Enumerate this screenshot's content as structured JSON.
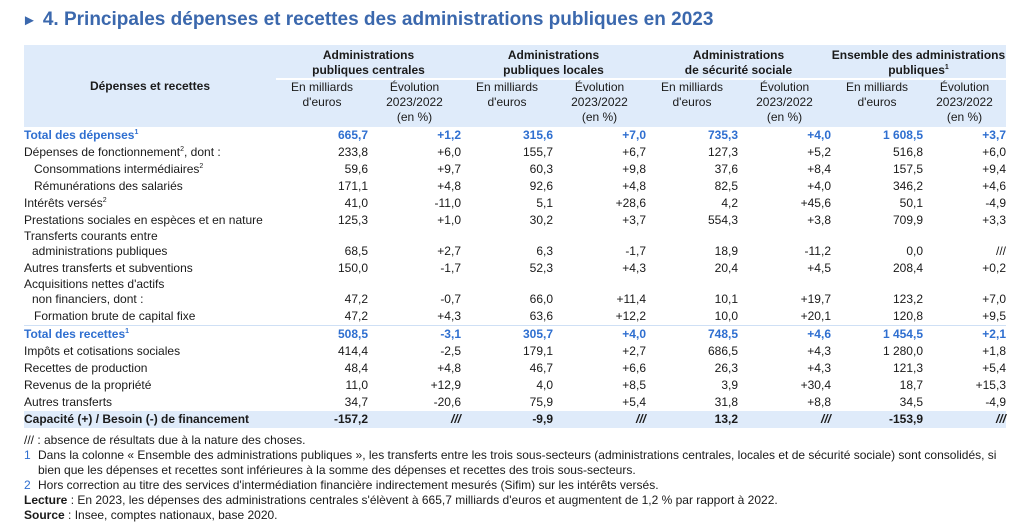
{
  "title": "4. Principales dépenses et recettes des administrations publiques en 2023",
  "header": {
    "row_label": "Dépenses et recettes",
    "groups": [
      {
        "l1": "Administrations",
        "l2": "publiques centrales",
        "sup": ""
      },
      {
        "l1": "Administrations",
        "l2": "publiques locales",
        "sup": ""
      },
      {
        "l1": "Administrations",
        "l2": "de sécurité sociale",
        "sup": ""
      },
      {
        "l1": "Ensemble des administrations",
        "l2": "publiques",
        "sup": "1"
      }
    ],
    "sub_value": [
      "En milliards",
      "d'euros"
    ],
    "sub_evo": [
      "Évolution",
      "2023/2022",
      "(en %)"
    ]
  },
  "rows": [
    {
      "label": "Total des dépenses",
      "sup": "1",
      "type": "total",
      "values": [
        "665,7",
        "+1,2",
        "315,6",
        "+7,0",
        "735,3",
        "+4,0",
        "1 608,5",
        "+3,7"
      ]
    },
    {
      "label": "Dépenses de fonctionnement",
      "sup": "2",
      "suffix": ", dont :",
      "values": [
        "233,8",
        "+6,0",
        "155,7",
        "+6,7",
        "127,3",
        "+5,2",
        "516,8",
        "+6,0"
      ]
    },
    {
      "label": "Consommations intermédiaires",
      "sup": "2",
      "type": "indent",
      "values": [
        "59,6",
        "+9,7",
        "60,3",
        "+9,8",
        "37,6",
        "+8,4",
        "157,5",
        "+9,4"
      ]
    },
    {
      "label": "Rémunérations des salariés",
      "type": "indent",
      "values": [
        "171,1",
        "+4,8",
        "92,6",
        "+4,8",
        "82,5",
        "+4,0",
        "346,2",
        "+4,6"
      ]
    },
    {
      "label": "Intérêts versés",
      "sup": "2",
      "values": [
        "41,0",
        "-11,0",
        "5,1",
        "+28,6",
        "4,2",
        "+45,6",
        "50,1",
        "-4,9"
      ]
    },
    {
      "label": "Prestations sociales en espèces et en nature",
      "values": [
        "125,3",
        "+1,0",
        "30,2",
        "+3,7",
        "554,3",
        "+3,8",
        "709,9",
        "+3,3"
      ]
    },
    {
      "label": "Transferts courants entre",
      "label2": "administrations publiques",
      "values": [
        "68,5",
        "+2,7",
        "6,3",
        "-1,7",
        "18,9",
        "-11,2",
        "0,0",
        "///"
      ]
    },
    {
      "label": "Autres transferts et subventions",
      "values": [
        "150,0",
        "-1,7",
        "52,3",
        "+4,3",
        "20,4",
        "+4,5",
        "208,4",
        "+0,2"
      ]
    },
    {
      "label": "Acquisitions nettes d'actifs",
      "label2": "non financiers, dont :",
      "values": [
        "47,2",
        "-0,7",
        "66,0",
        "+11,4",
        "10,1",
        "+19,7",
        "123,2",
        "+7,0"
      ]
    },
    {
      "label": "Formation brute de capital fixe",
      "type": "indent",
      "values": [
        "47,2",
        "+4,3",
        "63,6",
        "+12,2",
        "10,0",
        "+20,1",
        "120,8",
        "+9,5"
      ]
    },
    {
      "label": "Total des recettes",
      "sup": "1",
      "type": "total sep",
      "values": [
        "508,5",
        "-3,1",
        "305,7",
        "+4,0",
        "748,5",
        "+4,6",
        "1 454,5",
        "+2,1"
      ]
    },
    {
      "label": "Impôts et cotisations sociales",
      "values": [
        "414,4",
        "-2,5",
        "179,1",
        "+2,7",
        "686,5",
        "+4,3",
        "1 280,0",
        "+1,8"
      ]
    },
    {
      "label": "Recettes de production",
      "values": [
        "48,4",
        "+4,8",
        "46,7",
        "+6,6",
        "26,3",
        "+4,3",
        "121,3",
        "+5,4"
      ]
    },
    {
      "label": "Revenus de la propriété",
      "values": [
        "11,0",
        "+12,9",
        "4,0",
        "+8,5",
        "3,9",
        "+30,4",
        "18,7",
        "+15,3"
      ]
    },
    {
      "label": "Autres transferts",
      "values": [
        "34,7",
        "-20,6",
        "75,9",
        "+5,4",
        "31,8",
        "+8,8",
        "34,5",
        "-4,9"
      ]
    },
    {
      "label": "Capacité (+) / Besoin (-) de financement",
      "type": "cap",
      "values": [
        "-157,2",
        "///",
        "-9,9",
        "///",
        "13,2",
        "///",
        "-153,9",
        "///"
      ]
    }
  ],
  "notes": {
    "absence": "/// : absence de résultats due à la nature des choses.",
    "n1_num": "1",
    "n1": "Dans la colonne « Ensemble des administrations publiques », les transferts entre les trois sous-secteurs (administrations centrales, locales et de sécurité sociale) sont consolidés, si bien que les dépenses et recettes sont inférieures à la somme des dépenses et recettes des trois sous-secteurs.",
    "n2_num": "2",
    "n2": "Hors correction au titre des services d'intermédiation financière indirectement mesurés (Sifim) sur les intérêts versés.",
    "lecture_label": "Lecture",
    "lecture": " : En 2023, les dépenses des administrations centrales s'élèvent à 665,7 milliards d'euros et augmentent de 1,2 % par rapport à 2022.",
    "source_label": "Source",
    "source": " : Insee, comptes nationaux, base 2020."
  },
  "colors": {
    "title": "#3b68ad",
    "header_bg": "#dfebfa",
    "total_text": "#2f6fd0"
  }
}
